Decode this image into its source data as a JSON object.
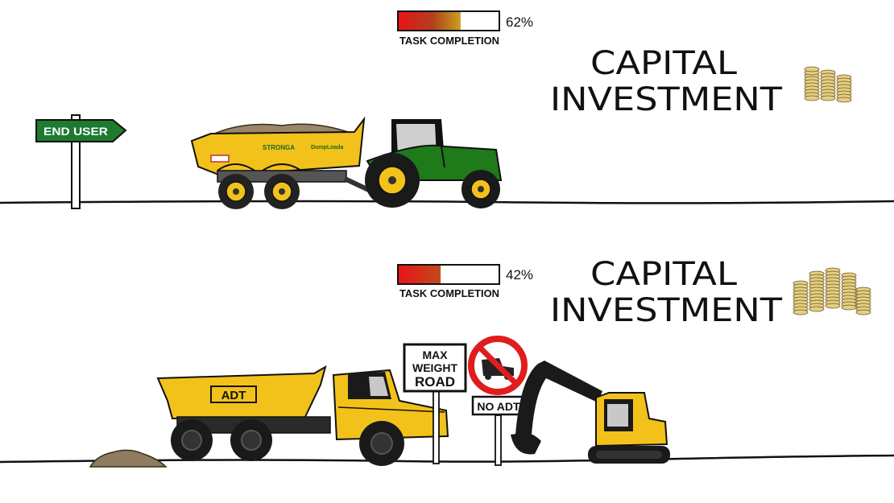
{
  "top": {
    "progress": {
      "percent": 62,
      "label": "62%",
      "caption": "TASK COMPLETION"
    },
    "title": {
      "line1": "CAPITAL",
      "line2": "INVESTMENT"
    },
    "signpost": {
      "label": "END USER"
    },
    "trailer": {
      "brand": "STRONGA",
      "model": "DumpLoada"
    }
  },
  "bottom": {
    "progress": {
      "percent": 42,
      "label": "42%",
      "caption": "TASK COMPLETION"
    },
    "title": {
      "line1": "CAPITAL",
      "line2": "INVESTMENT"
    },
    "truck": {
      "label": "ADT"
    },
    "weight_sign": {
      "line1": "MAX",
      "line2": "WEIGHT",
      "line3": "ROAD"
    },
    "no_adt_sign": {
      "label": "NO ADT"
    }
  },
  "colors": {
    "vehicle_yellow": "#f2c21b",
    "tractor_green": "#1f7a1a",
    "sign_green": "#1d7a2e",
    "prohibition_red": "#e01d1d",
    "coin_gold": "#d9bf6a",
    "dirt": "#8f7c5e"
  },
  "icons": [
    "coin-stack-icon",
    "no-truck-icon"
  ]
}
